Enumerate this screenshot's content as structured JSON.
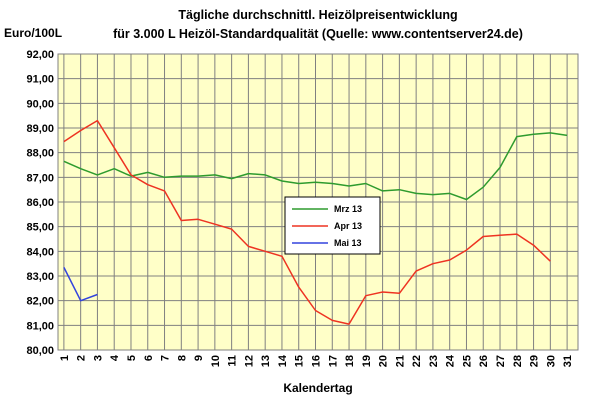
{
  "chart_data": {
    "type": "line",
    "title": "Tägliche durchschnittl. Heizölpreisentwicklung",
    "subtitle": "für 3.000 L Heizöl-Standardqualität (Quelle: www.contentserver24.de)",
    "ylabel": "Euro/100L",
    "xlabel": "Kalendertag",
    "ylim": [
      80,
      92
    ],
    "y_ticks": [
      "80,00",
      "81,00",
      "82,00",
      "83,00",
      "84,00",
      "85,00",
      "86,00",
      "87,00",
      "88,00",
      "89,00",
      "90,00",
      "91,00",
      "92,00"
    ],
    "x": [
      1,
      2,
      3,
      4,
      5,
      6,
      7,
      8,
      9,
      10,
      11,
      12,
      13,
      14,
      15,
      16,
      17,
      18,
      19,
      20,
      21,
      22,
      23,
      24,
      25,
      26,
      27,
      28,
      29,
      30,
      31
    ],
    "grid": true,
    "legend_position": "center",
    "series": [
      {
        "name": "Mrz 13",
        "color": "#2e9b2e",
        "values": [
          87.65,
          87.35,
          87.1,
          87.35,
          87.05,
          87.2,
          87.0,
          87.05,
          87.05,
          87.1,
          86.95,
          87.15,
          87.1,
          86.85,
          86.75,
          86.8,
          86.75,
          86.65,
          86.75,
          86.45,
          86.5,
          86.35,
          86.3,
          86.35,
          86.1,
          86.6,
          87.4,
          88.65,
          88.75,
          88.8,
          88.7
        ]
      },
      {
        "name": "Apr 13",
        "color": "#ee3322",
        "values": [
          88.45,
          88.9,
          89.3,
          88.2,
          87.1,
          86.7,
          86.45,
          85.25,
          85.3,
          85.1,
          84.9,
          84.2,
          84.0,
          83.8,
          82.55,
          81.6,
          81.2,
          81.05,
          82.2,
          82.35,
          82.3,
          83.2,
          83.5,
          83.65,
          84.05,
          84.6,
          84.65,
          84.7,
          84.25,
          83.6,
          null
        ]
      },
      {
        "name": "Mai 13",
        "color": "#3344dd",
        "values": [
          83.35,
          82.0,
          82.25,
          null,
          null,
          null,
          null,
          null,
          null,
          null,
          null,
          null,
          null,
          null,
          null,
          null,
          null,
          null,
          null,
          null,
          null,
          null,
          null,
          null,
          null,
          null,
          null,
          null,
          null,
          null,
          null
        ]
      }
    ]
  }
}
